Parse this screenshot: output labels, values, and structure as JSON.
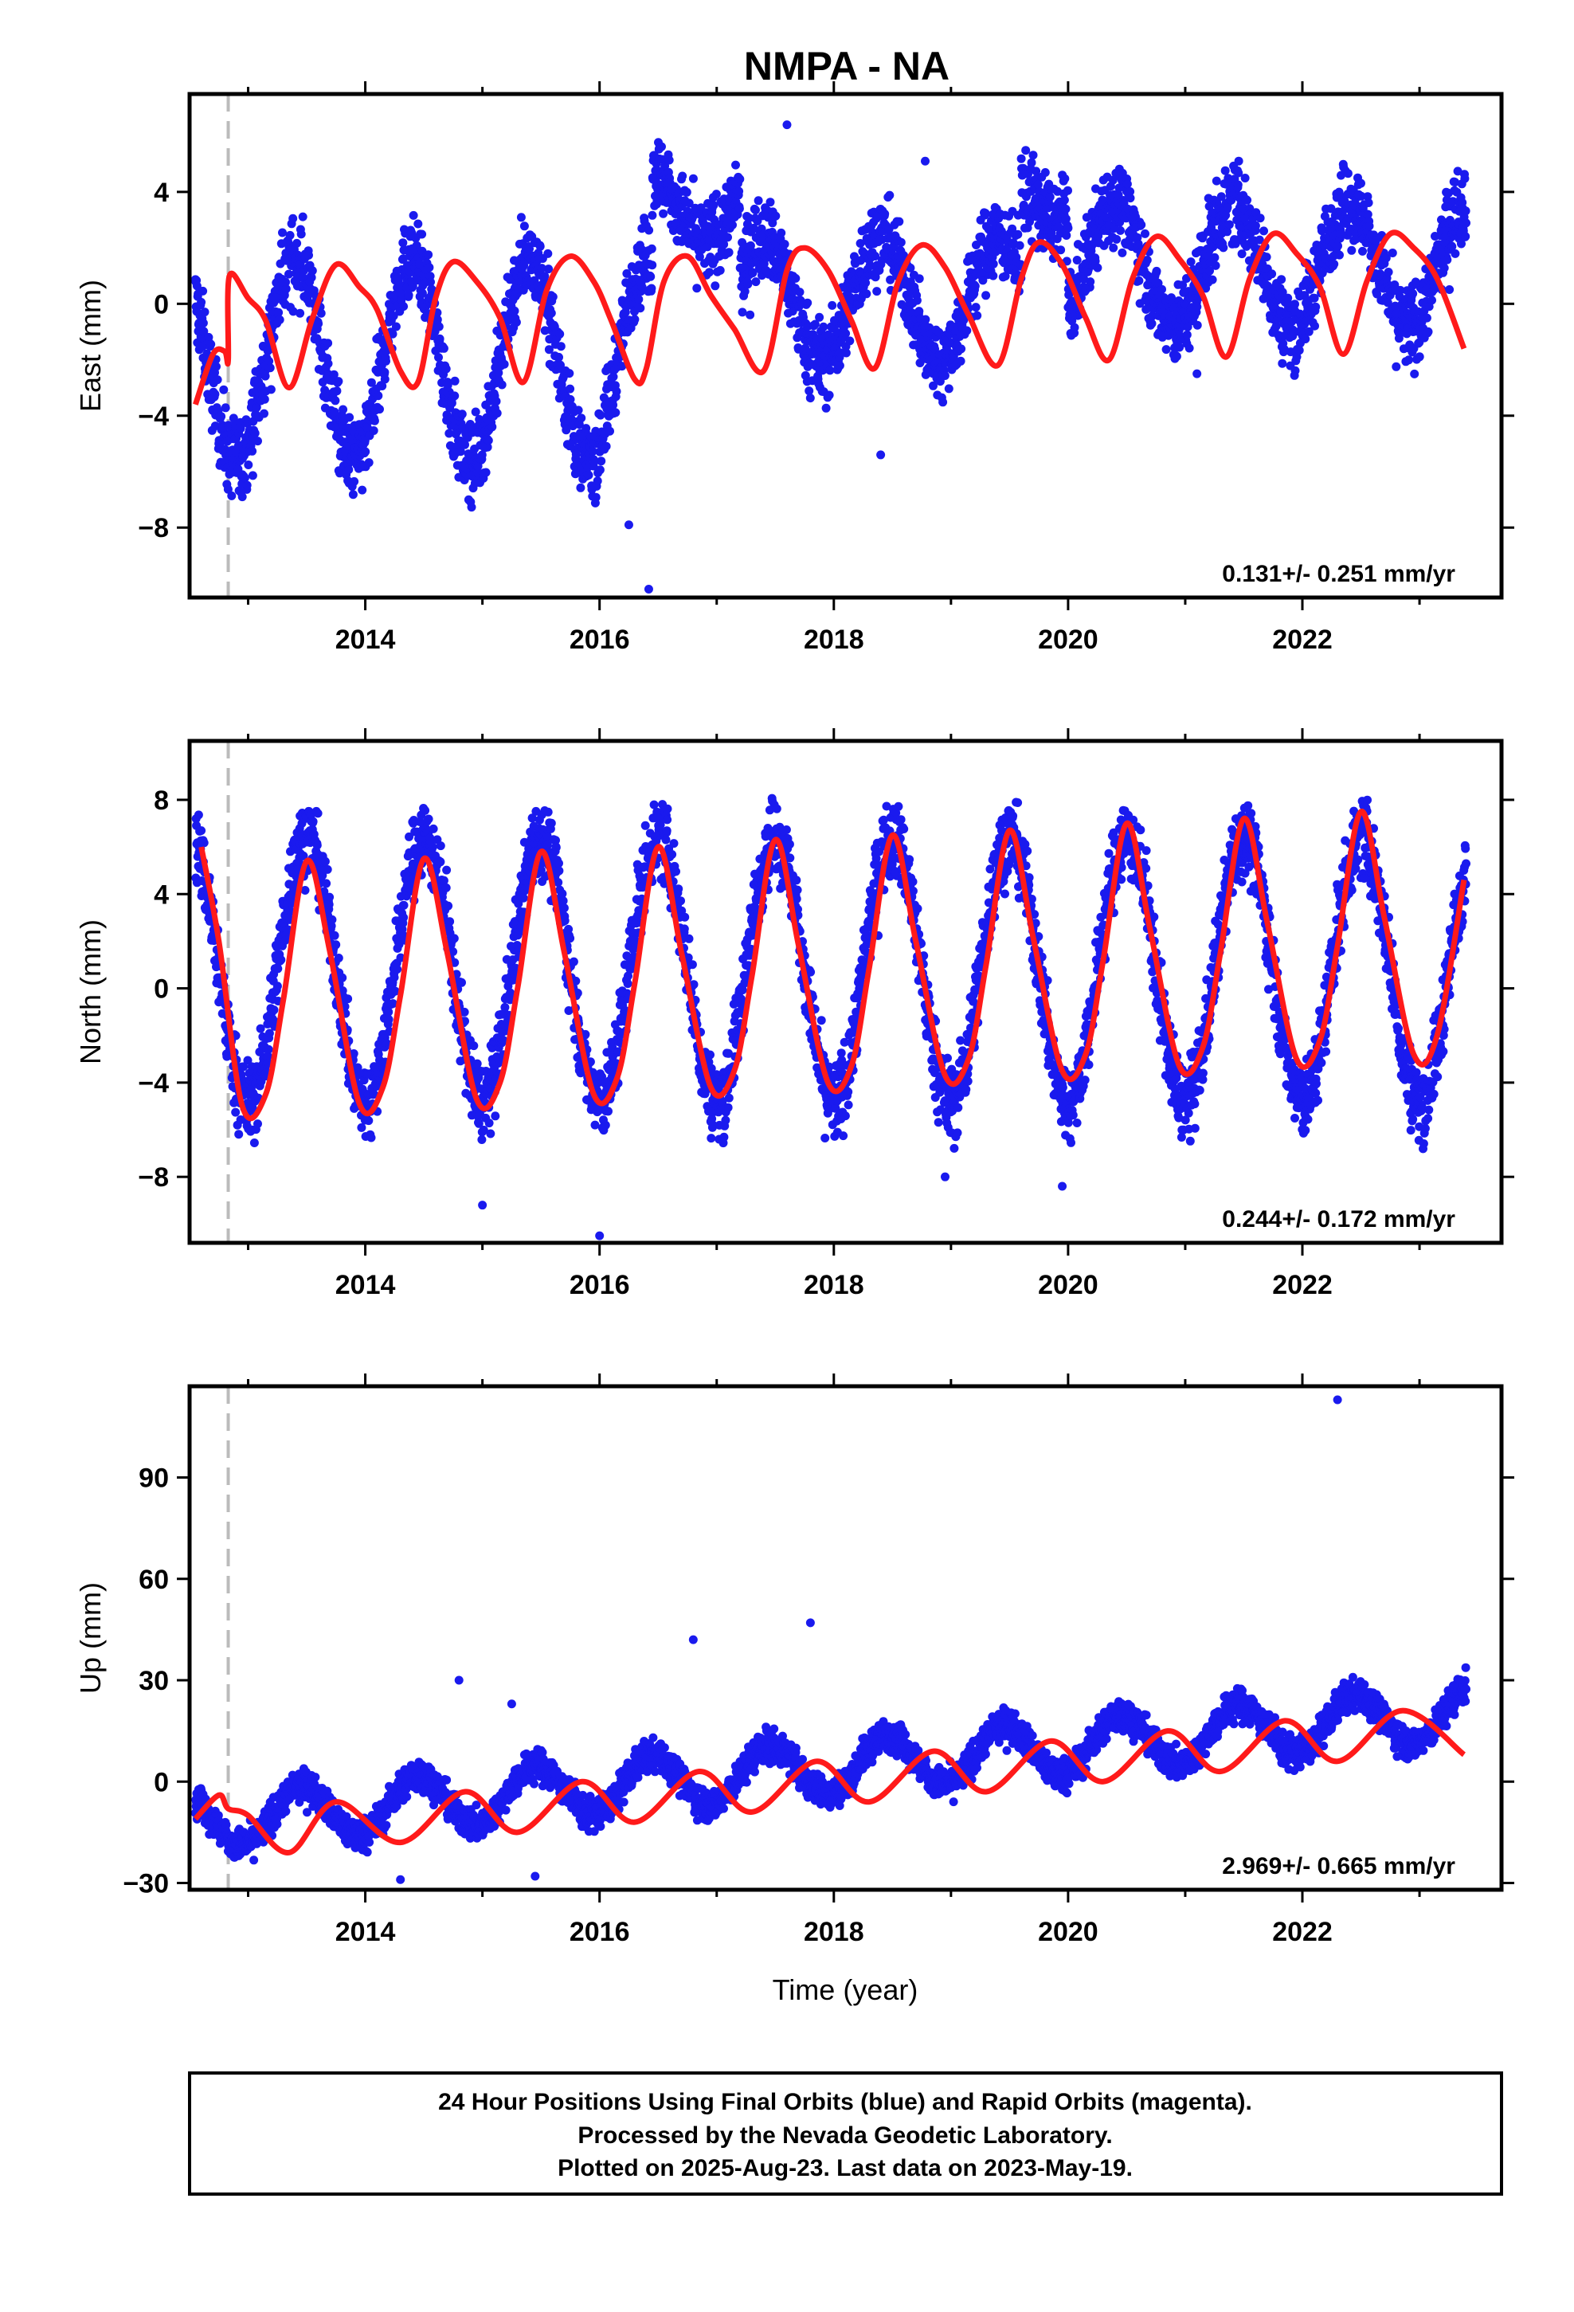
{
  "title": "NMPA - NA",
  "xlabel": "Time (year)",
  "footer": {
    "line1": "24 Hour Positions Using Final Orbits (blue) and Rapid Orbits (magenta).",
    "line2": "Processed by the Nevada Geodetic Laboratory.",
    "line3": "Plotted on 2025-Aug-23. Last data on 2023-May-19."
  },
  "colors": {
    "points": "#1a1aee",
    "fit": "#ff1a1a",
    "marker": "#bbbbbb",
    "axis": "#000000"
  },
  "chart_data": [
    {
      "type": "scatter",
      "name": "east",
      "ylabel": "East (mm)",
      "rate_text": "0.131+/- 0.251 mm/yr",
      "xlim": [
        2012.5,
        2023.7
      ],
      "ylim": [
        -10.5,
        7.5
      ],
      "xticks": [
        2014,
        2016,
        2018,
        2020,
        2022
      ],
      "xtick_labels": [
        "2014",
        "2016",
        "2018",
        "2020",
        "2022"
      ],
      "yticks": [
        -8,
        -4,
        0,
        4
      ],
      "ytick_labels": [
        "−8",
        "−4",
        "0",
        "4"
      ],
      "grid": false,
      "marker_x": 2012.83,
      "fit": {
        "x": [
          2012.55,
          2012.7,
          2012.8,
          2012.83,
          2012.84,
          2013.0,
          2013.15,
          2013.35,
          2013.55,
          2013.75,
          2013.95,
          2014.1,
          2014.3,
          2014.45,
          2014.6,
          2014.75,
          2014.95,
          2015.15,
          2015.35,
          2015.55,
          2015.75,
          2015.95,
          2016.1,
          2016.3,
          2016.4,
          2016.55,
          2016.75,
          2016.95,
          2017.15,
          2017.4,
          2017.6,
          2017.75,
          2017.95,
          2018.15,
          2018.35,
          2018.55,
          2018.75,
          2018.95,
          2019.15,
          2019.4,
          2019.6,
          2019.75,
          2019.95,
          2020.15,
          2020.35,
          2020.55,
          2020.75,
          2020.95,
          2021.15,
          2021.35,
          2021.55,
          2021.75,
          2021.95,
          2022.15,
          2022.35,
          2022.55,
          2022.75,
          2022.95,
          2023.15,
          2023.38
        ],
        "y": [
          -3.6,
          -1.8,
          -1.7,
          -2.0,
          1.0,
          0.2,
          -0.6,
          -3.0,
          -0.5,
          1.4,
          0.6,
          -0.2,
          -2.4,
          -2.8,
          0.2,
          1.5,
          0.8,
          -0.5,
          -2.8,
          0.5,
          1.7,
          0.8,
          -0.6,
          -2.7,
          -2.3,
          0.8,
          1.7,
          0.3,
          -0.9,
          -2.4,
          1.2,
          2.0,
          1.2,
          -0.6,
          -2.3,
          0.8,
          2.1,
          1.3,
          -0.4,
          -2.2,
          0.9,
          2.2,
          1.4,
          -0.5,
          -2.0,
          0.9,
          2.4,
          1.6,
          0.3,
          -1.9,
          0.9,
          2.5,
          1.8,
          0.6,
          -1.8,
          0.8,
          2.5,
          2.0,
          0.9,
          -1.6
        ]
      },
      "points_model": {
        "segments": [
          {
            "start": 2012.55,
            "end": 2016.45,
            "offset": -2.0,
            "amplitude": 3.6,
            "phase": 0.15
          },
          {
            "start": 2016.45,
            "end": 2017.2,
            "offset": 3.6,
            "amplitude": 1.3,
            "phase": 0.15
          },
          {
            "start": 2017.2,
            "end": 2019.6,
            "offset": 0.2,
            "amplitude": 2.2,
            "phase": 0.15
          },
          {
            "start": 2019.6,
            "end": 2020.0,
            "offset": 4.0,
            "amplitude": 1.0,
            "phase": 0.15
          },
          {
            "start": 2020.0,
            "end": 2023.4,
            "offset": 1.4,
            "amplitude": 2.2,
            "phase": 0.15
          }
        ],
        "noise": 1.2,
        "outliers": [
          [
            2016.42,
            -10.2
          ],
          [
            2016.25,
            -7.9
          ],
          [
            2017.6,
            6.4
          ],
          [
            2018.4,
            -5.4
          ],
          [
            2012.95,
            -6.9
          ],
          [
            2018.78,
            5.1
          ],
          [
            2021.1,
            -2.5
          ]
        ]
      }
    },
    {
      "type": "scatter",
      "name": "north",
      "ylabel": "North (mm)",
      "rate_text": "0.244+/- 0.172 mm/yr",
      "xlim": [
        2012.5,
        2023.7
      ],
      "ylim": [
        -10.8,
        10.5
      ],
      "xticks": [
        2014,
        2016,
        2018,
        2020,
        2022
      ],
      "xtick_labels": [
        "2014",
        "2016",
        "2018",
        "2020",
        "2022"
      ],
      "yticks": [
        -8,
        -4,
        0,
        4,
        8
      ],
      "ytick_labels": [
        "−8",
        "−4",
        "0",
        "4",
        "8"
      ],
      "grid": false,
      "marker_x": 2012.83,
      "fit": {
        "x": [
          2012.6,
          2012.75,
          2012.95,
          2013.15,
          2013.3,
          2013.5,
          2013.7,
          2013.95,
          2014.15,
          2014.3,
          2014.5,
          2014.7,
          2014.95,
          2015.15,
          2015.3,
          2015.5,
          2015.7,
          2015.95,
          2016.15,
          2016.3,
          2016.5,
          2016.7,
          2016.95,
          2017.15,
          2017.3,
          2017.5,
          2017.7,
          2017.95,
          2018.15,
          2018.3,
          2018.5,
          2018.7,
          2018.95,
          2019.15,
          2019.3,
          2019.5,
          2019.7,
          2019.95,
          2020.15,
          2020.3,
          2020.5,
          2020.7,
          2020.95,
          2021.15,
          2021.3,
          2021.5,
          2021.7,
          2021.95,
          2022.15,
          2022.3,
          2022.5,
          2022.7,
          2022.95,
          2023.15,
          2023.38
        ],
        "y": [
          6.0,
          2.0,
          -5.0,
          -4.5,
          -0.5,
          5.4,
          1.5,
          -4.9,
          -4.2,
          -0.3,
          5.5,
          1.5,
          -4.7,
          -4.0,
          0.0,
          5.8,
          1.5,
          -4.5,
          -3.8,
          0.2,
          6.0,
          1.5,
          -4.2,
          -3.5,
          0.5,
          6.3,
          1.8,
          -4.0,
          -3.3,
          0.8,
          6.5,
          2.0,
          -3.7,
          -3.0,
          1.0,
          6.7,
          2.2,
          -3.5,
          -2.8,
          1.2,
          7.0,
          2.5,
          -3.3,
          -2.5,
          1.5,
          7.2,
          2.8,
          -3.0,
          -2.2,
          1.8,
          7.5,
          3.0,
          -2.8,
          -2.0,
          4.6
        ]
      },
      "points_model": {
        "segments": [
          {
            "start": 2012.55,
            "end": 2023.4,
            "offset": 0.8,
            "amplitude": 5.6,
            "phase": 0.25
          }
        ],
        "noise": 1.4,
        "outliers": [
          [
            2016.0,
            -10.5
          ],
          [
            2015.0,
            -9.2
          ],
          [
            2019.95,
            -8.4
          ],
          [
            2018.95,
            -8.0
          ]
        ]
      }
    },
    {
      "type": "scatter",
      "name": "up",
      "ylabel": "Up (mm)",
      "rate_text": "2.969+/- 0.665 mm/yr",
      "xlim": [
        2012.5,
        2023.7
      ],
      "ylim": [
        -32,
        117
      ],
      "xticks": [
        2014,
        2016,
        2018,
        2020,
        2022
      ],
      "xtick_labels": [
        "2014",
        "2016",
        "2018",
        "2020",
        "2022"
      ],
      "yticks": [
        -30,
        0,
        30,
        60,
        90
      ],
      "ytick_labels": [
        "−30",
        "0",
        "30",
        "60",
        "90"
      ],
      "grid": false,
      "marker_x": 2012.83,
      "fit": {
        "x": [
          2012.55,
          2012.75,
          2012.83,
          2013.0,
          2013.35,
          2013.75,
          2014.3,
          2014.85,
          2015.3,
          2015.85,
          2016.3,
          2016.85,
          2017.3,
          2017.85,
          2018.3,
          2018.85,
          2019.3,
          2019.85,
          2020.3,
          2020.85,
          2021.3,
          2021.85,
          2022.3,
          2022.85,
          2023.38
        ],
        "y": [
          -11.0,
          -4.0,
          -8.0,
          -10.0,
          -21.0,
          -6.0,
          -18.0,
          -3.0,
          -15.0,
          0.0,
          -12.0,
          3.0,
          -9.0,
          6.0,
          -6.0,
          9.0,
          -3.0,
          12.0,
          0.0,
          15.0,
          3.0,
          18.0,
          6.0,
          21.0,
          8.0
        ]
      },
      "points_model": {
        "segments": [
          {
            "start": 2012.55,
            "end": 2023.4,
            "offset": -12.0,
            "amplitude": 8.0,
            "phase": 0.2,
            "slope": 3.0
          }
        ],
        "noise": 4.0,
        "outliers": [
          [
            2022.3,
            113.0
          ],
          [
            2017.8,
            47.0
          ],
          [
            2016.8,
            42.0
          ],
          [
            2014.8,
            30.0
          ],
          [
            2015.25,
            23.0
          ],
          [
            2015.45,
            -28.0
          ],
          [
            2014.3,
            -29.0
          ]
        ]
      }
    }
  ]
}
